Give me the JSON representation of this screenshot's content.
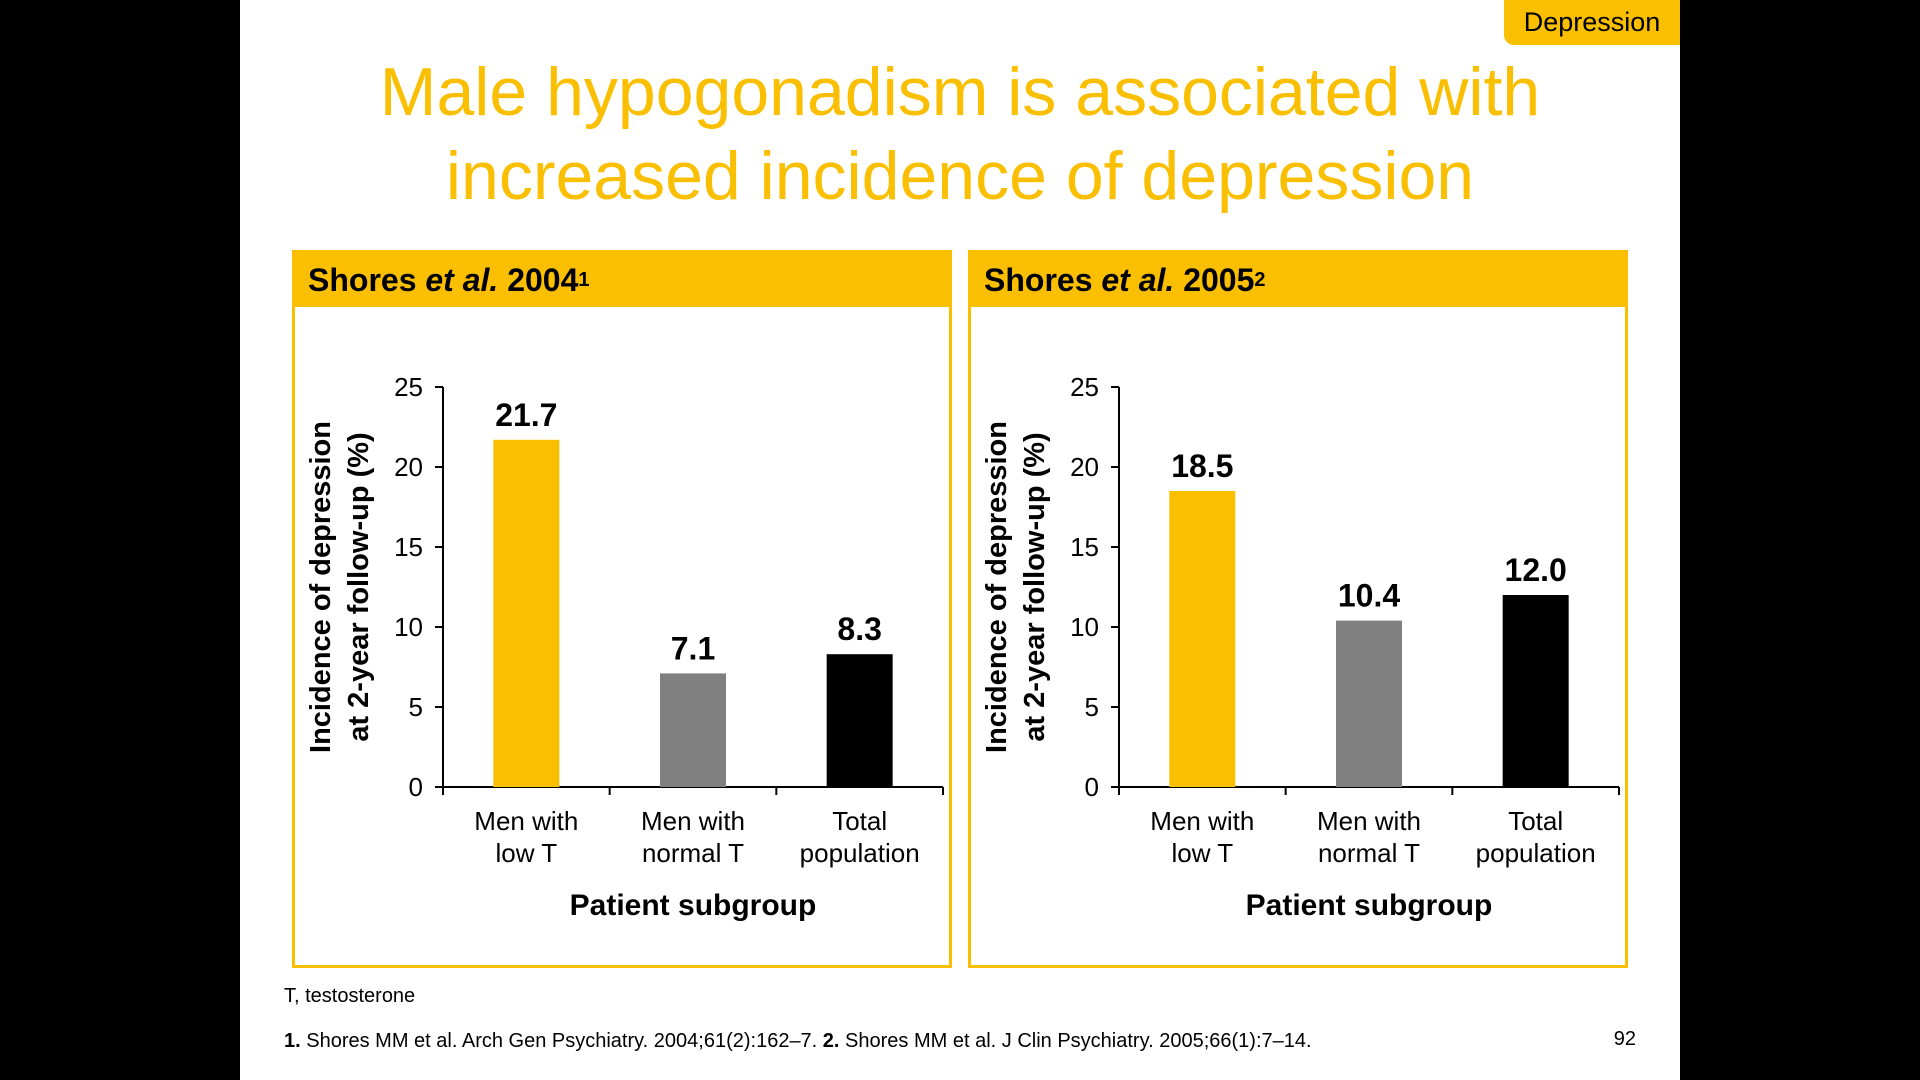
{
  "tag": "Depression",
  "title_line1": "Male hypogonadism is associated with",
  "title_line2": "increased incidence of depression",
  "panels": [
    {
      "author": "Shores ",
      "etal": "et al.",
      "year": " 2004",
      "sup": "1"
    },
    {
      "author": "Shores ",
      "etal": "et al.",
      "year": " 2005",
      "sup": "2"
    }
  ],
  "footnote": "T, testosterone",
  "refs": {
    "n1": "1.",
    "r1": " Shores MM et al. Arch Gen Psychiatry. 2004;61(2):162–7. ",
    "n2": "2.",
    "r2": " Shores MM et al. J Clin Psychiatry. 2005;66(1):7–14."
  },
  "page_number": "92",
  "chart_data": [
    {
      "type": "bar",
      "categories": [
        [
          "Men with",
          "low T"
        ],
        [
          "Men with",
          "normal T"
        ],
        [
          "Total",
          "population"
        ]
      ],
      "values": [
        21.7,
        7.1,
        8.3
      ],
      "value_labels": [
        "21.7",
        "7.1",
        "8.3"
      ],
      "colors": [
        "#F9BF00",
        "#808080",
        "#000000"
      ],
      "ylabel_lines": [
        "Incidence of depression",
        "at 2-year follow-up (%)"
      ],
      "xlabel": "Patient subgroup",
      "ylim": [
        0,
        25
      ],
      "yticks": [
        0,
        5,
        10,
        15,
        20,
        25
      ]
    },
    {
      "type": "bar",
      "categories": [
        [
          "Men with",
          "low T"
        ],
        [
          "Men with",
          "normal T"
        ],
        [
          "Total",
          "population"
        ]
      ],
      "values": [
        18.5,
        10.4,
        12.0
      ],
      "value_labels": [
        "18.5",
        "10.4",
        "12.0"
      ],
      "colors": [
        "#F9BF00",
        "#808080",
        "#000000"
      ],
      "ylabel_lines": [
        "Incidence of depression",
        "at 2-year follow-up (%)"
      ],
      "xlabel": "Patient subgroup",
      "ylim": [
        0,
        25
      ],
      "yticks": [
        0,
        5,
        10,
        15,
        20,
        25
      ]
    }
  ]
}
